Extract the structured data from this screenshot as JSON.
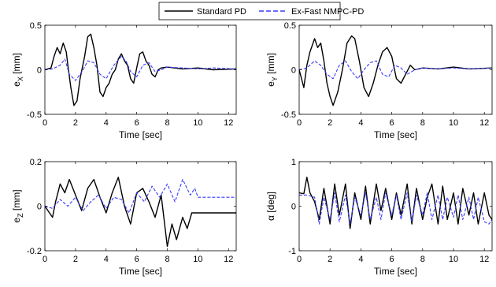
{
  "legend": [
    {
      "label": "Standard PD",
      "color": "#000000",
      "dash": "solid"
    },
    {
      "label": "Ex-Fast NMPC-PD",
      "color": "#3b3bff",
      "dash": "dashed"
    }
  ],
  "chart_data": [
    {
      "type": "line",
      "xlabel": "Time [sec]",
      "ylabel_main": "e",
      "ylabel_sub": "X",
      "ylabel_unit": " [mm]",
      "xlim": [
        0,
        12.5
      ],
      "ylim": [
        -0.5,
        0.5
      ],
      "xticks": [
        0,
        2,
        4,
        6,
        8,
        10,
        12
      ],
      "yticks": [
        -0.5,
        0,
        0.5
      ],
      "ytick_labels": [
        "-0.5",
        "0",
        "0.5"
      ],
      "series": [
        {
          "name": "Standard PD",
          "x": [
            0,
            0.4,
            0.6,
            0.8,
            1.0,
            1.2,
            1.4,
            1.5,
            1.7,
            1.9,
            2.1,
            2.3,
            2.6,
            2.8,
            3.0,
            3.2,
            3.4,
            3.6,
            3.8,
            4.0,
            4.2,
            4.4,
            4.6,
            4.8,
            5.0,
            5.2,
            5.4,
            5.6,
            5.8,
            6.0,
            6.2,
            6.4,
            6.6,
            6.8,
            7.0,
            7.2,
            7.4,
            7.6,
            8.0,
            9.0,
            10.0,
            11.0,
            12.5
          ],
          "y": [
            0,
            0.02,
            0.15,
            0.25,
            0.18,
            0.3,
            0.2,
            0.05,
            -0.2,
            -0.4,
            -0.35,
            -0.1,
            0.15,
            0.37,
            0.4,
            0.25,
            0.05,
            -0.25,
            -0.3,
            -0.2,
            -0.15,
            -0.05,
            0.0,
            0.12,
            0.18,
            0.1,
            0.05,
            -0.1,
            -0.15,
            0.02,
            0.18,
            0.2,
            0.1,
            0.05,
            -0.05,
            -0.08,
            0.0,
            0.02,
            0.03,
            0.01,
            0.02,
            0.0,
            0.01
          ]
        },
        {
          "name": "Ex-Fast NMPC-PD",
          "x": [
            0,
            0.5,
            1.0,
            1.3,
            1.6,
            2.0,
            2.5,
            2.8,
            3.2,
            3.6,
            4.0,
            4.5,
            5.0,
            5.3,
            5.6,
            6.0,
            6.4,
            6.8,
            7.2,
            7.6,
            8.0,
            9.0,
            10.0,
            11.0,
            12.5
          ],
          "y": [
            0,
            0.01,
            0.05,
            0.12,
            -0.05,
            -0.12,
            0.0,
            0.1,
            0.08,
            -0.05,
            -0.1,
            0.05,
            0.15,
            0.1,
            -0.02,
            -0.08,
            0.05,
            0.08,
            -0.02,
            0.0,
            0.03,
            0.02,
            0.01,
            0.02,
            0.01
          ]
        }
      ]
    },
    {
      "type": "line",
      "xlabel": "Time [sec]",
      "ylabel_main": "e",
      "ylabel_sub": "Y",
      "ylabel_unit": " [mm]",
      "xlim": [
        0,
        12.5
      ],
      "ylim": [
        -0.5,
        0.5
      ],
      "xticks": [
        0,
        2,
        4,
        6,
        8,
        10,
        12
      ],
      "yticks": [
        -0.5,
        0,
        0.5
      ],
      "ytick_labels": [
        "-0.5",
        "0",
        "0.5"
      ],
      "series": [
        {
          "name": "Standard PD",
          "x": [
            0,
            0.3,
            0.5,
            0.7,
            1.0,
            1.2,
            1.4,
            1.6,
            1.8,
            2.0,
            2.2,
            2.5,
            2.8,
            3.1,
            3.4,
            3.6,
            3.9,
            4.2,
            4.5,
            4.8,
            5.1,
            5.4,
            5.7,
            6.0,
            6.3,
            6.6,
            6.9,
            7.2,
            7.5,
            8.0,
            9.0,
            10.0,
            11.0,
            12.5
          ],
          "y": [
            0,
            -0.2,
            0.05,
            0.2,
            0.35,
            0.25,
            0.3,
            0.1,
            -0.15,
            -0.3,
            -0.4,
            -0.25,
            0.0,
            0.3,
            0.38,
            0.35,
            0.1,
            -0.2,
            -0.3,
            -0.15,
            0.05,
            0.2,
            0.25,
            0.15,
            -0.1,
            -0.15,
            -0.05,
            0.05,
            0.0,
            0.02,
            0.01,
            0.03,
            0.01,
            0.02
          ]
        },
        {
          "name": "Ex-Fast NMPC-PD",
          "x": [
            0,
            0.5,
            1.0,
            1.4,
            1.8,
            2.2,
            2.6,
            3.0,
            3.4,
            3.8,
            4.2,
            4.6,
            5.0,
            5.4,
            5.8,
            6.2,
            6.6,
            7.0,
            7.5,
            8.0,
            9.0,
            10.0,
            11.0,
            12.5
          ],
          "y": [
            0,
            0.02,
            0.1,
            0.05,
            -0.05,
            -0.1,
            0.05,
            0.1,
            -0.02,
            -0.1,
            0.0,
            0.08,
            0.1,
            -0.05,
            -0.08,
            0.05,
            0.02,
            -0.05,
            0.0,
            0.02,
            0.01,
            0.02,
            0.01,
            0.02
          ]
        }
      ]
    },
    {
      "type": "line",
      "xlabel": "Time [sec]",
      "ylabel_main": "e",
      "ylabel_sub": "Z",
      "ylabel_unit": " [mm]",
      "xlim": [
        0,
        12.5
      ],
      "ylim": [
        -0.2,
        0.2
      ],
      "xticks": [
        0,
        2,
        4,
        6,
        8,
        10,
        12
      ],
      "yticks": [
        -0.2,
        0,
        0.2
      ],
      "ytick_labels": [
        "-0.2",
        "0",
        "0.2"
      ],
      "series": [
        {
          "name": "Standard PD",
          "x": [
            0,
            0.5,
            0.7,
            1.0,
            1.3,
            1.6,
            2.0,
            2.4,
            2.8,
            3.2,
            3.6,
            4.0,
            4.4,
            4.8,
            5.2,
            5.6,
            6.0,
            6.4,
            6.8,
            7.2,
            7.6,
            8.0,
            8.3,
            8.6,
            9.0,
            9.3,
            9.6,
            10.0,
            11.0,
            12.5
          ],
          "y": [
            0,
            -0.05,
            0.02,
            0.1,
            0.06,
            0.12,
            0.05,
            -0.02,
            0.08,
            0.12,
            0.04,
            -0.03,
            0.06,
            0.13,
            0.0,
            -0.08,
            0.06,
            0.08,
            0.02,
            -0.05,
            0.05,
            -0.18,
            -0.08,
            -0.15,
            -0.05,
            -0.1,
            -0.03,
            -0.03,
            -0.03,
            -0.03
          ]
        },
        {
          "name": "Ex-Fast NMPC-PD",
          "x": [
            0,
            0.5,
            1.0,
            1.5,
            2.0,
            2.5,
            3.0,
            3.5,
            4.0,
            4.5,
            5.0,
            5.5,
            6.0,
            6.5,
            7.0,
            7.5,
            8.0,
            8.5,
            9.0,
            9.5,
            9.8,
            10.0,
            11.0,
            12.5
          ],
          "y": [
            0,
            -0.01,
            0.03,
            0.0,
            0.04,
            -0.02,
            0.02,
            0.05,
            -0.01,
            0.04,
            0.03,
            -0.03,
            0.06,
            0.02,
            0.09,
            0.04,
            0.1,
            0.02,
            0.12,
            0.05,
            0.08,
            0.04,
            0.04,
            0.04
          ]
        }
      ]
    },
    {
      "type": "line",
      "xlabel": "Time [sec]",
      "ylabel_main": "α",
      "ylabel_sub": "",
      "ylabel_unit": " [deg]",
      "xlim": [
        0,
        12.5
      ],
      "ylim": [
        -1,
        1
      ],
      "xticks": [
        0,
        2,
        4,
        6,
        8,
        10,
        12
      ],
      "yticks": [
        -1,
        0,
        1
      ],
      "ytick_labels": [
        "-1",
        "0",
        "1"
      ],
      "series": [
        {
          "name": "Standard PD",
          "x": [
            0,
            0.3,
            0.5,
            0.7,
            1.0,
            1.3,
            1.6,
            2.0,
            2.3,
            2.6,
            3.0,
            3.3,
            3.6,
            4.0,
            4.3,
            4.6,
            5.0,
            5.3,
            5.6,
            6.0,
            6.3,
            6.6,
            7.0,
            7.3,
            7.6,
            8.0,
            8.3,
            8.6,
            9.0,
            9.3,
            9.6,
            10.0,
            10.3,
            10.6,
            11.0,
            11.3,
            11.6,
            12.0,
            12.3,
            12.5
          ],
          "y": [
            0.3,
            0.28,
            0.65,
            0.3,
            0.1,
            -0.3,
            0.4,
            -0.4,
            0.5,
            -0.2,
            0.5,
            -0.5,
            0.3,
            -0.3,
            0.45,
            -0.4,
            0.5,
            -0.1,
            0.4,
            -0.3,
            0.3,
            -0.2,
            0.5,
            -0.4,
            0.4,
            -0.3,
            0.2,
            0.5,
            -0.4,
            0.45,
            -0.3,
            0.3,
            -0.4,
            0.4,
            -0.2,
            0.3,
            -0.4,
            0.3,
            -0.2,
            -0.3
          ]
        },
        {
          "name": "Ex-Fast NMPC-PD",
          "x": [
            0,
            0.5,
            1.0,
            1.3,
            1.6,
            2.0,
            2.3,
            2.6,
            3.0,
            3.3,
            3.6,
            4.0,
            4.3,
            4.6,
            5.0,
            5.3,
            5.6,
            6.0,
            6.3,
            6.6,
            7.0,
            7.3,
            7.6,
            8.0,
            8.3,
            8.6,
            9.0,
            9.3,
            9.6,
            10.0,
            10.3,
            10.6,
            11.0,
            11.3,
            11.6,
            12.0,
            12.3,
            12.5
          ],
          "y": [
            0.25,
            0.25,
            0.2,
            -0.4,
            0.2,
            -0.3,
            0.3,
            -0.35,
            0.25,
            -0.4,
            0.2,
            -0.2,
            0.3,
            -0.3,
            0.2,
            -0.3,
            0.3,
            -0.2,
            0.25,
            -0.3,
            0.3,
            -0.35,
            0.25,
            -0.2,
            0.3,
            -0.3,
            0.25,
            -0.3,
            0.2,
            -0.25,
            0.25,
            -0.3,
            0.2,
            -0.3,
            0.2,
            -0.35,
            -0.4,
            -0.3
          ]
        }
      ]
    }
  ]
}
